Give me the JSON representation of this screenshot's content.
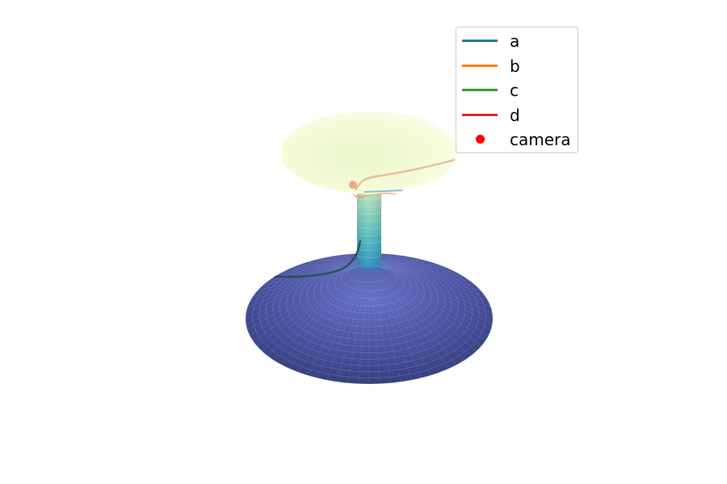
{
  "chart_data": {
    "type": "surface3d",
    "title": "",
    "xlabel": "",
    "ylabel": "",
    "axes_visible": false,
    "grid": false,
    "surface": {
      "shape": "wormhole (Ellis-style embedding): wide lower disk, narrow throat, upper flared funnel",
      "colormap": "YlGnBu_r",
      "colormap_low": "#2e3a80",
      "colormap_high": "#ffffd9",
      "lower_sheet_color": "#4a54a0",
      "upper_sheet_color": "#f4fad0"
    },
    "legend": {
      "placement": "upper-right",
      "entries": [
        {
          "label": "a",
          "kind": "line",
          "color": "#1f77b4"
        },
        {
          "label": "b",
          "kind": "line",
          "color": "#ff7f0e"
        },
        {
          "label": "c",
          "kind": "line",
          "color": "#2ca02c"
        },
        {
          "label": "d",
          "kind": "line",
          "color": "#d62728"
        },
        {
          "label": "camera",
          "kind": "marker",
          "color": "#ff0000"
        }
      ]
    },
    "series": [
      {
        "name": "a",
        "color": "#1f77b4"
      },
      {
        "name": "b",
        "color": "#ff7f0e"
      },
      {
        "name": "c",
        "color": "#2ca02c"
      },
      {
        "name": "d",
        "color": "#d62728"
      },
      {
        "name": "camera",
        "color": "#ff0000"
      }
    ]
  }
}
